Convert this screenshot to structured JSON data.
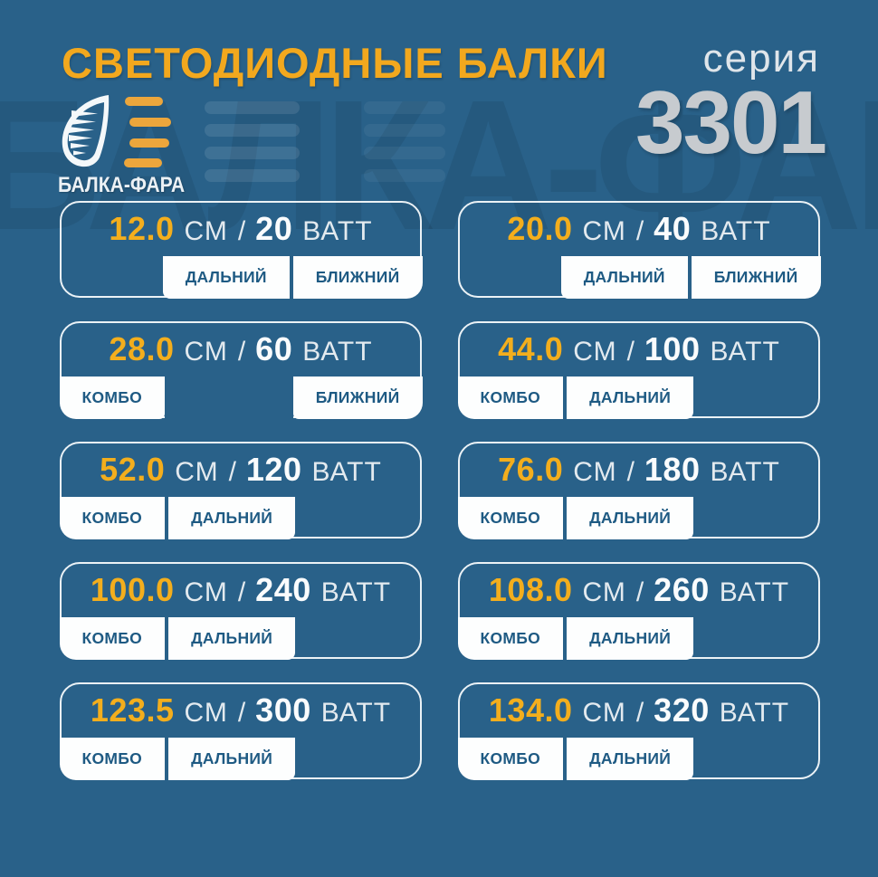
{
  "page": {
    "background_color": "#296189",
    "accent_yellow": "#F2A81E",
    "tab_text_color": "#1E5A83",
    "series_number_color": "#C7CBCF"
  },
  "header": {
    "title": "СВЕТОДИОДНЫЕ БАЛКИ",
    "series_label": "серия",
    "series_number": "3301"
  },
  "logo": {
    "brand": "БАЛКА-ФАРА",
    "icon": "headlight-lens-icon",
    "bar_color": "#ECA63C"
  },
  "watermark": {
    "text": "БАЛКА-ФАРА"
  },
  "units": {
    "length": "СМ",
    "separator": "/",
    "power": "ВАТТ"
  },
  "products": [
    {
      "length_cm": "12.0",
      "watts": "20",
      "beams": [
        "ДАЛЬНИЙ",
        "БЛИЖНИЙ"
      ],
      "tab_layout": "right"
    },
    {
      "length_cm": "20.0",
      "watts": "40",
      "beams": [
        "ДАЛЬНИЙ",
        "БЛИЖНИЙ"
      ],
      "tab_layout": "right"
    },
    {
      "length_cm": "28.0",
      "watts": "60",
      "beams": [
        "КОМБО",
        "БЛИЖНИЙ"
      ],
      "tab_layout": "split"
    },
    {
      "length_cm": "44.0",
      "watts": "100",
      "beams": [
        "КОМБО",
        "ДАЛЬНИЙ"
      ],
      "tab_layout": "left"
    },
    {
      "length_cm": "52.0",
      "watts": "120",
      "beams": [
        "КОМБО",
        "ДАЛЬНИЙ"
      ],
      "tab_layout": "left"
    },
    {
      "length_cm": "76.0",
      "watts": "180",
      "beams": [
        "КОМБО",
        "ДАЛЬНИЙ"
      ],
      "tab_layout": "left"
    },
    {
      "length_cm": "100.0",
      "watts": "240",
      "beams": [
        "КОМБО",
        "ДАЛЬНИЙ"
      ],
      "tab_layout": "left"
    },
    {
      "length_cm": "108.0",
      "watts": "260",
      "beams": [
        "КОМБО",
        "ДАЛЬНИЙ"
      ],
      "tab_layout": "left"
    },
    {
      "length_cm": "123.5",
      "watts": "300",
      "beams": [
        "КОМБО",
        "ДАЛЬНИЙ"
      ],
      "tab_layout": "left"
    },
    {
      "length_cm": "134.0",
      "watts": "320",
      "beams": [
        "КОМБО",
        "ДАЛЬНИЙ"
      ],
      "tab_layout": "left"
    }
  ]
}
